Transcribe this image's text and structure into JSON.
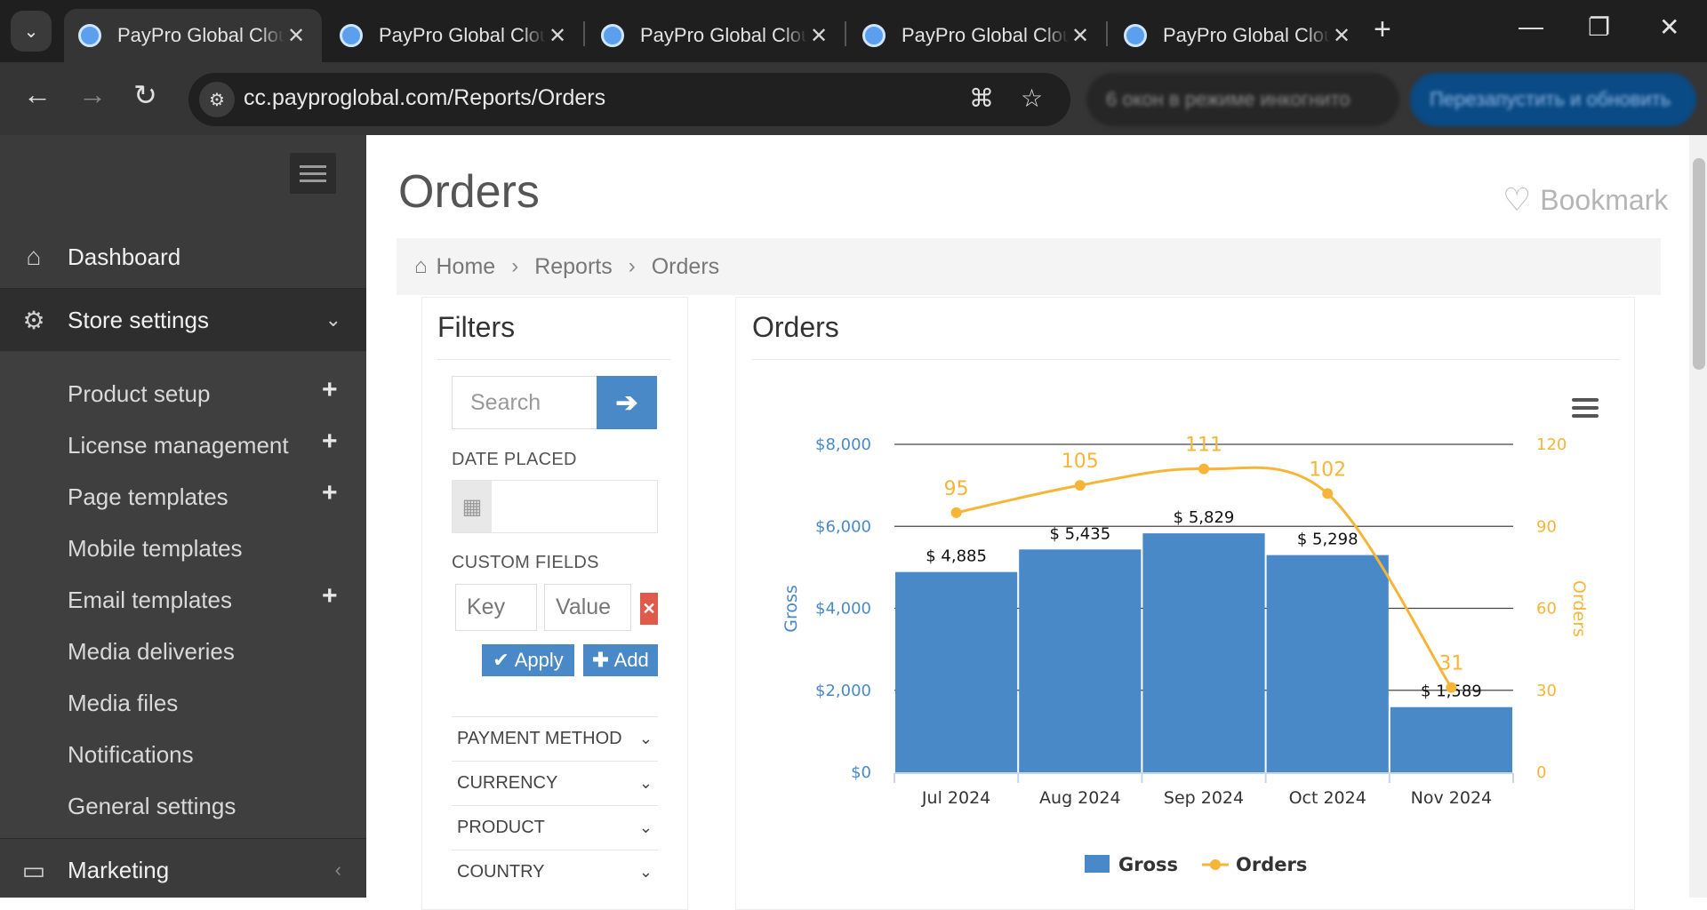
{
  "browser": {
    "tabs": [
      {
        "title": "PayPro Global Cloud",
        "active": true
      },
      {
        "title": "PayPro Global Cloud",
        "active": false
      },
      {
        "title": "PayPro Global Cloud",
        "active": false
      },
      {
        "title": "PayPro Global Cloud",
        "active": false
      },
      {
        "title": "PayPro Global Cloud",
        "active": false
      }
    ],
    "url": "cc.payproglobal.com/Reports/Orders",
    "incognito_label": "6 окон в режиме инкогнито",
    "update_label": "Перезапустить и обновить",
    "close_glyph": "✕"
  },
  "sidebar": {
    "dashboard": "Dashboard",
    "store_settings": "Store settings",
    "subitems": [
      {
        "label": "Product setup",
        "plus": true
      },
      {
        "label": "License management",
        "plus": true
      },
      {
        "label": "Page templates",
        "plus": true
      },
      {
        "label": "Mobile templates",
        "plus": false
      },
      {
        "label": "Email templates",
        "plus": true
      },
      {
        "label": "Media deliveries",
        "plus": false
      },
      {
        "label": "Media files",
        "plus": false
      },
      {
        "label": "Notifications",
        "plus": false
      },
      {
        "label": "General settings",
        "plus": false
      }
    ],
    "marketing": "Marketing"
  },
  "page": {
    "title": "Orders",
    "bookmark": "Bookmark",
    "breadcrumb": [
      "Home",
      "Reports",
      "Orders"
    ]
  },
  "filters": {
    "title": "Filters",
    "search_placeholder": "Search",
    "date_placed_label": "DATE PLACED",
    "custom_fields_label": "CUSTOM FIELDS",
    "key_placeholder": "Key",
    "value_placeholder": "Value",
    "apply": "Apply",
    "add": "Add",
    "accordions": [
      "PAYMENT METHOD",
      "CURRENCY",
      "PRODUCT",
      "COUNTRY"
    ]
  },
  "orders_panel": {
    "title": "Orders"
  },
  "chart_data": {
    "type": "bar",
    "categories": [
      "Jul 2024",
      "Aug 2024",
      "Sep 2024",
      "Oct 2024",
      "Nov 2024"
    ],
    "series": [
      {
        "name": "Gross",
        "type": "bar",
        "axis": "left",
        "values": [
          4885,
          5435,
          5829,
          5298,
          1589
        ],
        "labels": [
          "$ 4,885",
          "$ 5,435",
          "$ 5,829",
          "$ 5,298",
          "$ 1,589"
        ],
        "color": "#4a89c8"
      },
      {
        "name": "Orders",
        "type": "line",
        "axis": "right",
        "values": [
          95,
          105,
          111,
          102,
          31
        ],
        "color": "#f7b538"
      }
    ],
    "ylabel": "Gross",
    "y2label": "Orders",
    "ylim": [
      0,
      8000
    ],
    "y2lim": [
      0,
      120
    ],
    "yticks": [
      "$0",
      "$2,000",
      "$4,000",
      "$6,000",
      "$8,000"
    ],
    "y2ticks": [
      "0",
      "30",
      "60",
      "90",
      "120"
    ],
    "legend": "bottom",
    "grid": true
  }
}
